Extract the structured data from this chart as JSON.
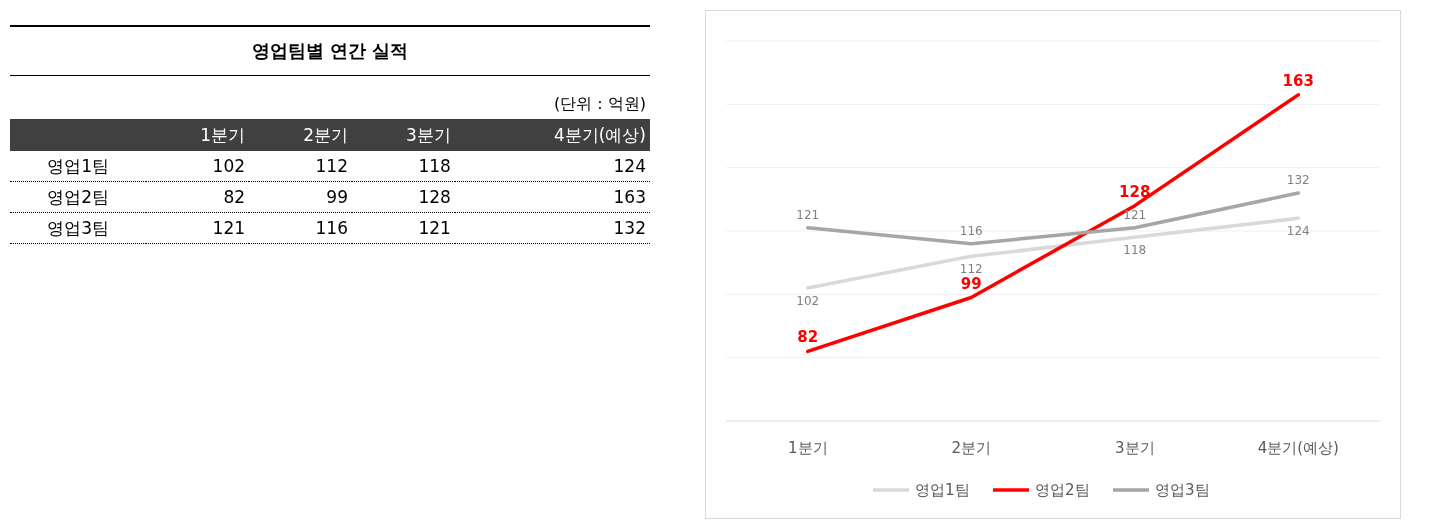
{
  "chart_data": [
    {
      "type": "other",
      "title": "영업팀별 연간 실적",
      "annotations": [
        "(단위 : 억원)"
      ],
      "categories": [
        "1분기",
        "2분기",
        "3분기",
        "4분기(예상)"
      ],
      "series": [
        {
          "name": "영업1팀",
          "values": [
            102,
            112,
            118,
            124
          ]
        },
        {
          "name": "영업2팀",
          "values": [
            82,
            99,
            128,
            163
          ]
        },
        {
          "name": "영업3팀",
          "values": [
            121,
            116,
            121,
            132
          ]
        }
      ],
      "data_labels": true
    },
    {
      "type": "line",
      "categories": [
        "1분기",
        "2분기",
        "3분기",
        "4분기(예상)"
      ],
      "series": [
        {
          "name": "영업1팀",
          "color": "#d9d9d9",
          "values": [
            102,
            112,
            118,
            124
          ]
        },
        {
          "name": "영업2팀",
          "color": "#ff0000",
          "values": [
            82,
            99,
            128,
            163
          ]
        },
        {
          "name": "영업3팀",
          "color": "#a6a6a6",
          "values": [
            121,
            116,
            121,
            132
          ]
        }
      ],
      "data_labels": true,
      "ylim": [
        60,
        180
      ],
      "yticks": [
        {
          "value": 60,
          "label": null
        },
        {
          "value": 80,
          "label": null
        },
        {
          "value": 100,
          "label": null
        },
        {
          "value": 120,
          "label": null
        },
        {
          "value": 140,
          "label": null
        },
        {
          "value": 160,
          "label": null
        },
        {
          "value": 180,
          "label": null
        }
      ],
      "grid": "y",
      "legend": "bottom",
      "line_style": "solid",
      "marker": "none"
    }
  ]
}
